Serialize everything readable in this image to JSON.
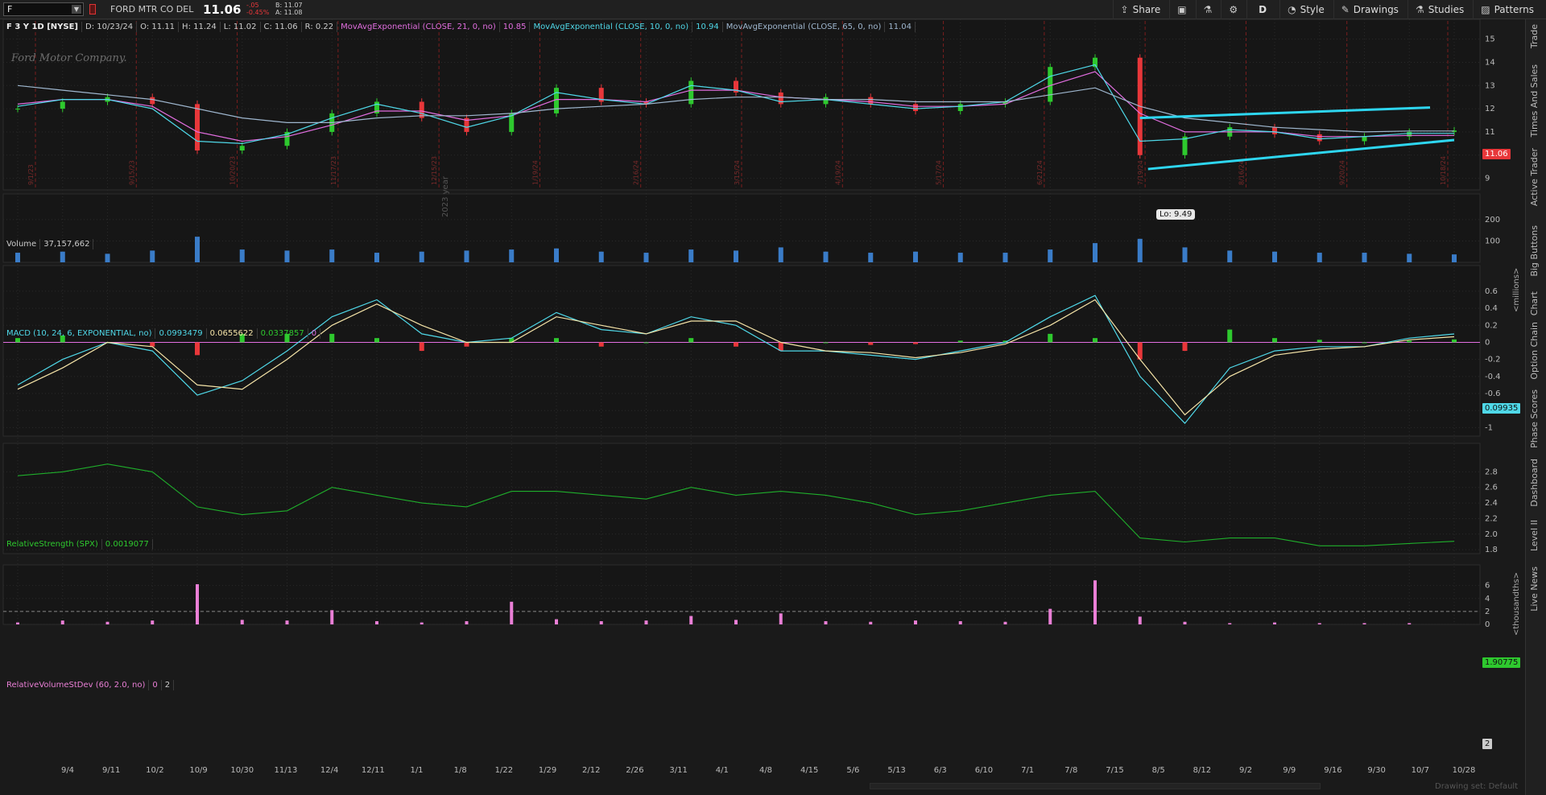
{
  "toolbar": {
    "symbol": "F",
    "company": "FORD MTR CO DEL",
    "last": "11.06",
    "change": "-.05",
    "change_pct": "-0.45%",
    "bid": "B: 11.07",
    "ask": "A: 11.08",
    "buttons": [
      {
        "label": "Share",
        "icon": "share-icon"
      },
      {
        "label": "",
        "icon": "camera-icon"
      },
      {
        "label": "",
        "icon": "flask-icon"
      },
      {
        "label": "",
        "icon": "gear-icon"
      },
      {
        "label": "D",
        "icon": "timeframe"
      },
      {
        "label": "Style",
        "icon": "style-icon"
      },
      {
        "label": "Drawings",
        "icon": "pencil-icon"
      },
      {
        "label": "Studies",
        "icon": "flask-icon"
      },
      {
        "label": "Patterns",
        "icon": "patterns-icon"
      }
    ]
  },
  "right_rail": [
    "Trade",
    "Times And Sales",
    "Active Trader",
    "Big Buttons",
    "Chart",
    "Option Chain",
    "Phase Scores",
    "Dashboard",
    "Level II",
    "Live News"
  ],
  "price_panel": {
    "header": [
      "F 3 Y 1D [NYSE]",
      "D: 10/23/24",
      "O: 11.11",
      "H: 11.24",
      "L: 11.02",
      "C: 11.06",
      "R: 0.22"
    ],
    "studies": [
      {
        "label": "MovAvgExponential (CLOSE, 21, 0, no)",
        "value": "10.85",
        "color": "#e26ee0"
      },
      {
        "label": "MovAvgExponential (CLOSE, 10, 0, no)",
        "value": "10.94",
        "color": "#4fd8e8"
      },
      {
        "label": "MovAvgExponential (CLOSE, 65, 0, no)",
        "value": "11.04",
        "color": "#9fb7cf"
      }
    ],
    "watermark": "Ford Motor Company.",
    "last_label": "11.06",
    "low_label": "Lo: 9.49",
    "year_label": "2023 year",
    "event_dates": [
      "9/1/23",
      "9/15/23",
      "10/20/23",
      "11/17/23",
      "12/15/23",
      "1/19/24",
      "2/16/24",
      "3/15/24",
      "4/19/24",
      "5/17/24",
      "6/21/24",
      "7/19/24",
      "8/16/24",
      "9/20/24",
      "10/18/24"
    ]
  },
  "volume_panel": {
    "title": "Volume",
    "value": "37,157,662",
    "unit": "<millions>"
  },
  "macd_panel": {
    "title": "MACD (10, 24, 6, EXPONENTIAL, no)",
    "values": [
      "0.0993479",
      "0.0655622",
      "0.0337857",
      "0"
    ],
    "value_colors": [
      "#4fd8e8",
      "#f5e4a8",
      "#2ec92e",
      "#e26ee0"
    ],
    "last_label": "0.09935"
  },
  "rs_panel": {
    "title": "RelativeStrength (SPX)",
    "value": "0.0019077",
    "unit": "<thousandths>",
    "last_label": "1.90775"
  },
  "rvsd_panel": {
    "title": "RelativeVolumeStDev (60, 2.0, no)",
    "values": [
      "0",
      "2"
    ],
    "last_label": "2"
  },
  "x_axis": [
    "9/4",
    "9/11",
    "10/2",
    "10/9",
    "10/30",
    "11/13",
    "12/4",
    "12/11",
    "1/1",
    "1/8",
    "1/22",
    "1/29",
    "2/12",
    "2/26",
    "3/11",
    "4/1",
    "4/8",
    "4/15",
    "5/6",
    "5/13",
    "6/3",
    "6/10",
    "7/1",
    "7/8",
    "7/15",
    "8/5",
    "8/12",
    "9/2",
    "9/9",
    "9/16",
    "9/30",
    "10/7",
    "10/28"
  ],
  "bottom_right": "Drawing set: Default",
  "colors": {
    "up": "#2ec92e",
    "down": "#e8373a",
    "volume": "#3a7cc8",
    "trend": "#2ed6f0",
    "rs": "#1fae2b",
    "rvsd": "#ea7fd6",
    "macd_value": "#4fd8e8",
    "macd_avg": "#f5e4a8"
  },
  "chart_data": [
    {
      "type": "candlestick",
      "title": "F 3 Y 1D [NYSE]",
      "x": [
        "9/4",
        "9/11",
        "10/2",
        "10/9",
        "10/30",
        "11/13",
        "12/4",
        "12/11",
        "1/1",
        "1/8",
        "1/22",
        "1/29",
        "2/12",
        "2/26",
        "3/11",
        "4/1",
        "4/8",
        "4/15",
        "5/6",
        "5/13",
        "6/3",
        "6/10",
        "7/1",
        "7/8",
        "7/15",
        "8/5",
        "8/12",
        "9/2",
        "9/9",
        "9/16",
        "9/30",
        "10/7",
        "10/23"
      ],
      "close": [
        12.0,
        12.3,
        12.5,
        12.2,
        10.2,
        10.4,
        11.0,
        11.8,
        12.3,
        11.6,
        11.0,
        11.8,
        12.9,
        12.3,
        12.2,
        13.2,
        12.7,
        12.2,
        12.5,
        12.2,
        11.9,
        12.2,
        12.3,
        13.8,
        14.2,
        10.0,
        10.8,
        11.2,
        10.9,
        10.6,
        10.8,
        11.0,
        11.06
      ],
      "series": [
        {
          "name": "MovAvgExponential (CLOSE, 21, 0, no)",
          "values": [
            12.2,
            12.4,
            12.4,
            12.1,
            11.0,
            10.6,
            10.8,
            11.3,
            11.9,
            11.9,
            11.5,
            11.7,
            12.4,
            12.4,
            12.3,
            12.8,
            12.8,
            12.5,
            12.4,
            12.3,
            12.1,
            12.1,
            12.2,
            13.0,
            13.6,
            11.8,
            11.0,
            11.0,
            11.0,
            10.8,
            10.8,
            10.85,
            10.85
          ]
        },
        {
          "name": "MovAvgExponential (CLOSE, 10, 0, no)",
          "values": [
            12.1,
            12.4,
            12.4,
            12.0,
            10.6,
            10.5,
            10.9,
            11.6,
            12.2,
            11.8,
            11.2,
            11.7,
            12.7,
            12.4,
            12.2,
            13.0,
            12.8,
            12.3,
            12.4,
            12.2,
            12.0,
            12.1,
            12.3,
            13.4,
            13.9,
            10.6,
            10.7,
            11.1,
            11.0,
            10.7,
            10.8,
            10.94,
            10.94
          ]
        },
        {
          "name": "MovAvgExponential (CLOSE, 65, 0, no)",
          "values": [
            13.0,
            12.8,
            12.6,
            12.4,
            12.0,
            11.6,
            11.4,
            11.4,
            11.6,
            11.7,
            11.7,
            11.8,
            12.0,
            12.1,
            12.2,
            12.4,
            12.5,
            12.5,
            12.4,
            12.4,
            12.3,
            12.3,
            12.3,
            12.6,
            12.9,
            12.1,
            11.6,
            11.4,
            11.2,
            11.1,
            11.0,
            11.04,
            11.04
          ]
        }
      ],
      "low_label": 9.49,
      "ylim": [
        8.5,
        15.3
      ],
      "yticks": [
        9,
        10,
        11,
        12,
        13,
        14,
        15
      ],
      "last": 11.06
    },
    {
      "type": "bar",
      "title": "Volume",
      "x": [
        "9/4",
        "9/11",
        "10/2",
        "10/9",
        "10/30",
        "11/13",
        "12/4",
        "12/11",
        "1/1",
        "1/8",
        "1/22",
        "1/29",
        "2/12",
        "2/26",
        "3/11",
        "4/1",
        "4/8",
        "4/15",
        "5/6",
        "5/13",
        "6/3",
        "6/10",
        "7/1",
        "7/8",
        "7/15",
        "8/5",
        "8/12",
        "9/2",
        "9/9",
        "9/16",
        "9/30",
        "10/7",
        "10/23"
      ],
      "values": [
        45,
        50,
        40,
        55,
        120,
        60,
        55,
        60,
        45,
        50,
        55,
        60,
        65,
        50,
        45,
        60,
        55,
        70,
        50,
        45,
        50,
        45,
        45,
        60,
        90,
        110,
        70,
        55,
        50,
        45,
        45,
        40,
        37
      ],
      "ylabel": "<millions>",
      "yticks": [
        100,
        200
      ],
      "ylim": [
        0,
        260
      ],
      "last": 37.157662
    },
    {
      "type": "line",
      "title": "MACD (10, 24, 6, EXPONENTIAL, no)",
      "x": [
        "9/4",
        "9/11",
        "10/2",
        "10/9",
        "10/30",
        "11/13",
        "12/4",
        "12/11",
        "1/1",
        "1/8",
        "1/22",
        "1/29",
        "2/12",
        "2/26",
        "3/11",
        "4/1",
        "4/8",
        "4/15",
        "5/6",
        "5/13",
        "6/3",
        "6/10",
        "7/1",
        "7/8",
        "7/15",
        "8/5",
        "8/12",
        "9/2",
        "9/9",
        "9/16",
        "9/30",
        "10/7",
        "10/23"
      ],
      "series": [
        {
          "name": "Value",
          "values": [
            -0.5,
            -0.2,
            0.0,
            -0.1,
            -0.62,
            -0.45,
            -0.1,
            0.3,
            0.5,
            0.1,
            0.0,
            0.05,
            0.35,
            0.15,
            0.1,
            0.3,
            0.2,
            -0.1,
            -0.1,
            -0.15,
            -0.2,
            -0.1,
            0.0,
            0.3,
            0.55,
            -0.4,
            -0.95,
            -0.3,
            -0.1,
            -0.05,
            -0.05,
            0.05,
            0.099
          ]
        },
        {
          "name": "Avg",
          "values": [
            -0.55,
            -0.3,
            0.0,
            -0.05,
            -0.5,
            -0.55,
            -0.2,
            0.2,
            0.45,
            0.2,
            0.0,
            0.0,
            0.3,
            0.2,
            0.1,
            0.25,
            0.25,
            0.0,
            -0.1,
            -0.12,
            -0.18,
            -0.12,
            -0.02,
            0.2,
            0.5,
            -0.2,
            -0.85,
            -0.4,
            -0.15,
            -0.08,
            -0.05,
            0.03,
            0.066
          ]
        },
        {
          "name": "Diff",
          "values": [
            0.05,
            0.08,
            0.0,
            -0.05,
            -0.15,
            0.1,
            0.1,
            0.1,
            0.05,
            -0.1,
            -0.05,
            0.05,
            0.05,
            -0.05,
            0.0,
            0.05,
            -0.05,
            -0.1,
            0.0,
            -0.03,
            -0.02,
            0.02,
            0.02,
            0.1,
            0.05,
            -0.2,
            -0.1,
            0.15,
            0.05,
            0.03,
            0.0,
            0.02,
            0.034
          ]
        }
      ],
      "ylim": [
        -1.1,
        0.75
      ],
      "yticks": [
        -1,
        -0.8,
        -0.6,
        -0.4,
        -0.2,
        0,
        0.2,
        0.4,
        0.6
      ],
      "last": 0.09935
    },
    {
      "type": "line",
      "title": "RelativeStrength (SPX)",
      "x": [
        "9/4",
        "9/11",
        "10/2",
        "10/9",
        "10/30",
        "11/13",
        "12/4",
        "12/11",
        "1/1",
        "1/8",
        "1/22",
        "1/29",
        "2/12",
        "2/26",
        "3/11",
        "4/1",
        "4/8",
        "4/15",
        "5/6",
        "5/13",
        "6/3",
        "6/10",
        "7/1",
        "7/8",
        "7/15",
        "8/5",
        "8/12",
        "9/2",
        "9/9",
        "9/16",
        "9/30",
        "10/7",
        "10/23"
      ],
      "series": [
        {
          "name": "RelativeStrength (SPX)",
          "values": [
            2.75,
            2.8,
            2.9,
            2.8,
            2.35,
            2.25,
            2.3,
            2.6,
            2.5,
            2.4,
            2.35,
            2.55,
            2.55,
            2.5,
            2.45,
            2.6,
            2.5,
            2.55,
            2.5,
            2.4,
            2.25,
            2.3,
            2.4,
            2.5,
            2.55,
            1.95,
            1.9,
            1.95,
            1.95,
            1.85,
            1.85,
            1.88,
            1.9078
          ]
        }
      ],
      "ylabel": "<thousandths>",
      "ylim": [
        1.75,
        3.0
      ],
      "yticks": [
        1.8,
        2.0,
        2.2,
        2.4,
        2.6,
        2.8
      ],
      "last": 1.90775
    },
    {
      "type": "bar",
      "title": "RelativeVolumeStDev (60, 2.0, no)",
      "x": [
        "9/4",
        "9/11",
        "10/2",
        "10/9",
        "10/30",
        "11/13",
        "12/4",
        "12/11",
        "1/1",
        "1/8",
        "1/22",
        "1/29",
        "2/12",
        "2/26",
        "3/11",
        "4/1",
        "4/8",
        "4/15",
        "5/6",
        "5/13",
        "6/3",
        "6/10",
        "7/1",
        "7/8",
        "7/15",
        "8/5",
        "8/12",
        "9/2",
        "9/9",
        "9/16",
        "9/30",
        "10/7",
        "10/23"
      ],
      "values": [
        0.3,
        0.6,
        0.4,
        0.6,
        6.2,
        0.7,
        0.6,
        2.2,
        0.5,
        0.3,
        0.5,
        3.5,
        0.8,
        0.5,
        0.6,
        1.3,
        0.7,
        1.7,
        0.5,
        0.4,
        0.6,
        0.5,
        0.4,
        2.4,
        6.8,
        1.2,
        0.4,
        0.2,
        0.3,
        0.2,
        0.2,
        0.2,
        0.0
      ],
      "ylim": [
        0,
        7.2
      ],
      "yticks": [
        0,
        2,
        4,
        6
      ],
      "threshold": 2,
      "last": 0
    }
  ]
}
